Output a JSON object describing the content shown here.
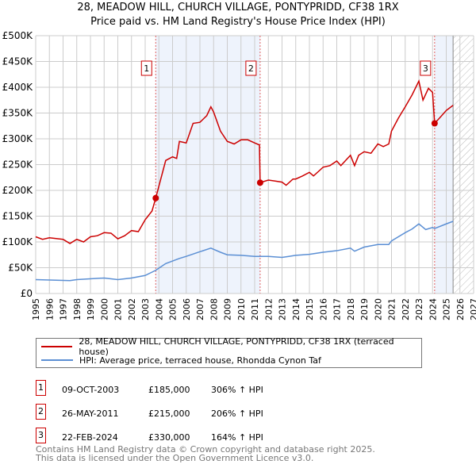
{
  "chart_data": {
    "type": "line",
    "title": "28, MEADOW HILL, CHURCH VILLAGE, PONTYPRIDD, CF38 1RX",
    "subtitle": "Price paid vs. HM Land Registry's House Price Index (HPI)",
    "xlim": [
      1995,
      2027
    ],
    "ylim": [
      0,
      500000
    ],
    "y_ticks": [
      0,
      50000,
      100000,
      150000,
      200000,
      250000,
      300000,
      350000,
      400000,
      450000,
      500000
    ],
    "y_tick_labels": [
      "£0",
      "£50K",
      "£100K",
      "£150K",
      "£200K",
      "£250K",
      "£300K",
      "£350K",
      "£400K",
      "£450K",
      "£500K"
    ],
    "x_ticks": [
      1995,
      1996,
      1997,
      1998,
      1999,
      2000,
      2001,
      2002,
      2003,
      2004,
      2005,
      2006,
      2007,
      2008,
      2009,
      2010,
      2011,
      2012,
      2013,
      2014,
      2015,
      2016,
      2017,
      2018,
      2019,
      2020,
      2021,
      2022,
      2023,
      2024,
      2025,
      2026,
      2027
    ],
    "grid": true,
    "series": [
      {
        "name": "28, MEADOW HILL, CHURCH VILLAGE, PONTYPRIDD, CF38 1RX (terraced house)",
        "color": "#cc0000",
        "x": [
          1995,
          1995.5,
          1996,
          1997,
          1997.5,
          1998,
          1998.5,
          1999,
          1999.5,
          2000,
          2000.5,
          2001,
          2001.5,
          2002,
          2002.5,
          2003,
          2003.5,
          2003.77,
          2004,
          2004.5,
          2005,
          2005.3,
          2005.5,
          2006,
          2006.5,
          2007,
          2007.5,
          2007.8,
          2008,
          2008.5,
          2009,
          2009.5,
          2010,
          2010.5,
          2011,
          2011.35,
          2011.4,
          2012,
          2012.5,
          2013,
          2013.3,
          2013.8,
          2014,
          2014.5,
          2015,
          2015.3,
          2015.8,
          2016,
          2016.5,
          2017,
          2017.3,
          2018,
          2018.3,
          2018.6,
          2019,
          2019.5,
          2020,
          2020.4,
          2020.8,
          2021,
          2021.5,
          2022,
          2022.5,
          2023,
          2023.3,
          2023.7,
          2024,
          2024.15,
          2024.5,
          2025,
          2025.5
        ],
        "y": [
          110000,
          105000,
          108000,
          105000,
          97000,
          105000,
          100000,
          110000,
          112000,
          118000,
          117000,
          106000,
          112000,
          122000,
          120000,
          143000,
          160000,
          185000,
          208000,
          258000,
          265000,
          262000,
          295000,
          292000,
          330000,
          332000,
          345000,
          362000,
          352000,
          315000,
          295000,
          290000,
          298000,
          298000,
          292000,
          288000,
          215000,
          220000,
          218000,
          216000,
          210000,
          222000,
          222000,
          228000,
          235000,
          228000,
          240000,
          245000,
          248000,
          257000,
          248000,
          268000,
          248000,
          268000,
          275000,
          272000,
          290000,
          285000,
          290000,
          315000,
          340000,
          362000,
          385000,
          412000,
          375000,
          398000,
          390000,
          330000,
          340000,
          355000,
          365000
        ]
      },
      {
        "name": "HPI: Average price, terraced house, Rhondda Cynon Taf",
        "color": "#5b8fd4",
        "x": [
          1995,
          1997.5,
          1998,
          2000,
          2001,
          2002,
          2003,
          2003.77,
          2004.5,
          2005.5,
          2006,
          2007,
          2007.8,
          2008.5,
          2009,
          2010,
          2011,
          2012,
          2013,
          2013.5,
          2014,
          2015,
          2016,
          2017,
          2018,
          2018.3,
          2019,
          2020,
          2020.8,
          2021,
          2022,
          2022.5,
          2023,
          2023.5,
          2024,
          2024.15,
          2025,
          2025.5
        ],
        "y": [
          27000,
          25000,
          27000,
          30000,
          27000,
          30000,
          35000,
          45000,
          58000,
          68000,
          72000,
          81000,
          88000,
          80000,
          75000,
          74000,
          72000,
          72000,
          70000,
          72000,
          74000,
          76000,
          80000,
          83000,
          88000,
          82000,
          90000,
          95000,
          95000,
          102000,
          118000,
          125000,
          135000,
          124000,
          128000,
          126000,
          135000,
          140000
        ]
      }
    ],
    "sales": [
      {
        "n": "1",
        "x": 2003.77,
        "y": 185000,
        "date": "09-OCT-2003",
        "price": "£185,000",
        "hpi": "306% ↑ HPI"
      },
      {
        "n": "2",
        "x": 2011.4,
        "y": 215000,
        "date": "26-MAY-2011",
        "price": "£215,000",
        "hpi": "206% ↑ HPI"
      },
      {
        "n": "3",
        "x": 2024.15,
        "y": 330000,
        "date": "22-FEB-2024",
        "price": "£330,000",
        "hpi": "164% ↑ HPI"
      }
    ],
    "data_end": 2025.5
  },
  "footer": {
    "line1": "Contains HM Land Registry data © Crown copyright and database right 2025.",
    "line2": "This data is licensed under the Open Government Licence v3.0."
  }
}
